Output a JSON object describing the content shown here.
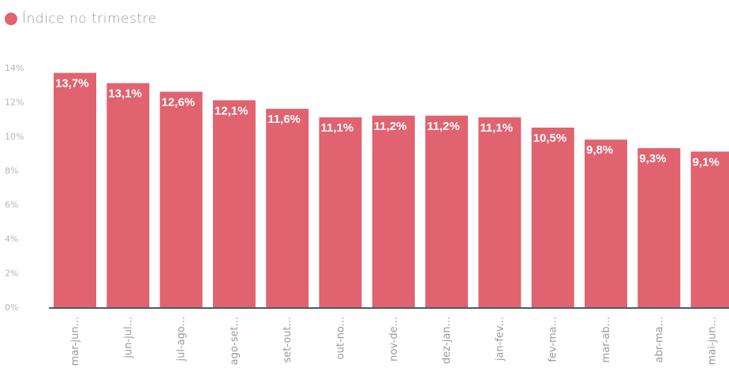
{
  "legend": {
    "label": "Índice no trimestre",
    "color": "#e0636f"
  },
  "chart_data": {
    "type": "bar",
    "categories": [
      "mar-jun...",
      "jun-jul...",
      "jul-ago...",
      "ago-set...",
      "set-out...",
      "out-no...",
      "nov-de...",
      "dez-jan...",
      "jan-fev...",
      "fev-ma...",
      "mar-ab...",
      "abr-ma...",
      "mai-jun..."
    ],
    "series": [
      {
        "name": "Índice no trimestre",
        "color": "#e0636f",
        "values": [
          13.7,
          13.1,
          12.6,
          12.1,
          11.6,
          11.1,
          11.2,
          11.2,
          11.1,
          10.5,
          9.8,
          9.3,
          9.1
        ],
        "labels": [
          "13,7%",
          "13,1%",
          "12,6%",
          "12,1%",
          "11,6%",
          "11,1%",
          "11,2%",
          "11,2%",
          "11,1%",
          "10,5%",
          "9,8%",
          "9,3%",
          "9,1%"
        ]
      }
    ],
    "yticks": [
      "0%",
      "2%",
      "4%",
      "6%",
      "8%",
      "10%",
      "12%",
      "14%"
    ],
    "ylim": [
      0,
      14
    ],
    "grid": false,
    "legend_position": "top-left"
  }
}
